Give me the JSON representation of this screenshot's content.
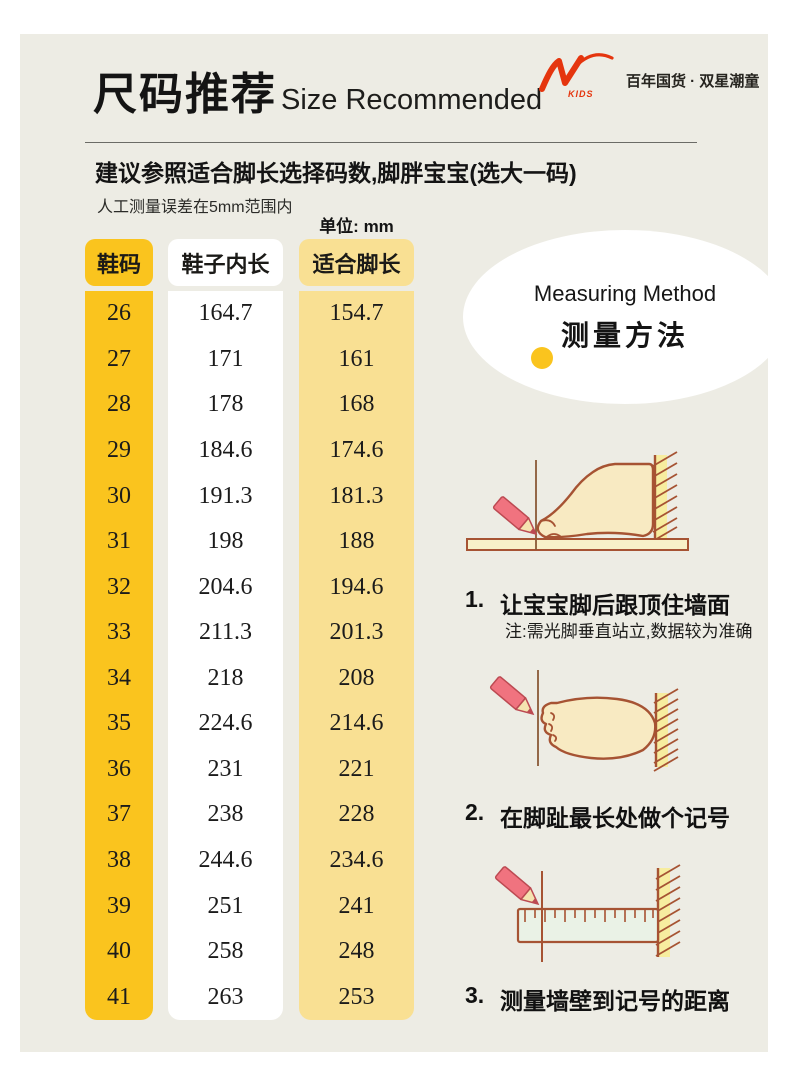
{
  "header": {
    "title_cn": "尺码推荐",
    "title_en": "Size Recommended",
    "brand": {
      "logo_sub": "KIDS",
      "tagline": "百年国货 · 双星潮童"
    }
  },
  "intro": {
    "subtitle": "建议参照适合脚长选择码数,脚胖宝宝(选大一码)",
    "note": "人工测量误差在5mm范围内",
    "unit_label": "单位: mm"
  },
  "table": {
    "columns": [
      "鞋码",
      "鞋子内长",
      "适合脚长"
    ],
    "rows": [
      [
        "26",
        "164.7",
        "154.7"
      ],
      [
        "27",
        "171",
        "161"
      ],
      [
        "28",
        "178",
        "168"
      ],
      [
        "29",
        "184.6",
        "174.6"
      ],
      [
        "30",
        "191.3",
        "181.3"
      ],
      [
        "31",
        "198",
        "188"
      ],
      [
        "32",
        "204.6",
        "194.6"
      ],
      [
        "33",
        "211.3",
        "201.3"
      ],
      [
        "34",
        "218",
        "208"
      ],
      [
        "35",
        "224.6",
        "214.6"
      ],
      [
        "36",
        "231",
        "221"
      ],
      [
        "37",
        "238",
        "228"
      ],
      [
        "38",
        "244.6",
        "234.6"
      ],
      [
        "39",
        "251",
        "241"
      ],
      [
        "40",
        "258",
        "248"
      ],
      [
        "41",
        "263",
        "253"
      ]
    ]
  },
  "measuring": {
    "title_en": "Measuring Method",
    "title_cn": "测量方法",
    "steps": [
      {
        "num": "1.",
        "text": "让宝宝脚后跟顶住墙面",
        "note": "注:需光脚垂直站立,数据较为准确"
      },
      {
        "num": "2.",
        "text": "在脚趾最长处做个记号"
      },
      {
        "num": "3.",
        "text": "测量墙壁到记号的距离"
      }
    ]
  },
  "colors": {
    "panel-bg": "#EDECE4",
    "accent-yellow": "#FAC41E",
    "light-yellow": "#F9E093",
    "text-dark": "#141414",
    "brand-red": "#E5350E",
    "outline-brown": "#A65333",
    "foot-fill": "#F8EAC2",
    "wall-fill": "#F7ED9F",
    "pencil-pink": "#F0737F",
    "pencil-dark": "#BC4A52",
    "pencil-wood": "#F5E3B0",
    "ruler-fill": "#EAF2E6"
  }
}
